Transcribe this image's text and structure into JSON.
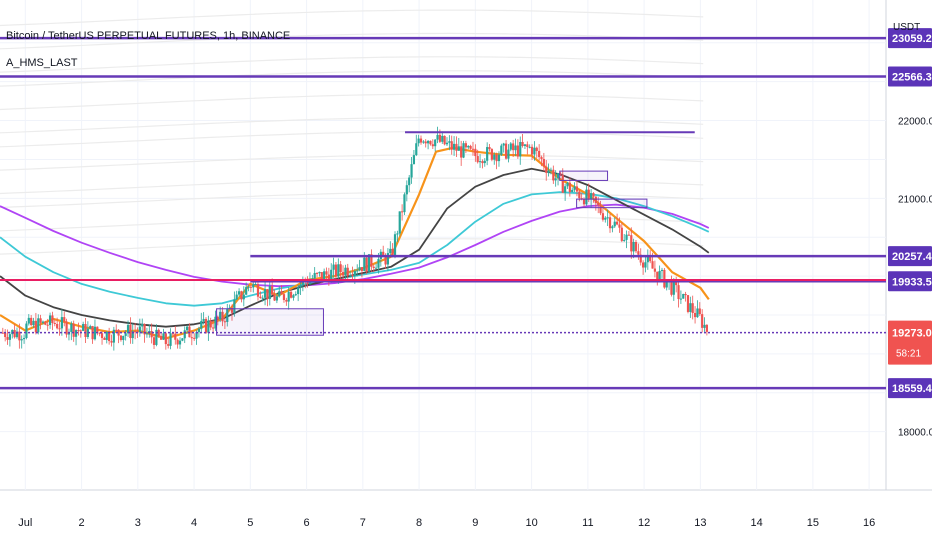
{
  "header": {
    "title": "Bitcoin / TetherUS PERPETUAL FUTURES, 1h, BINANCE",
    "indicator": "A_HMS_LAST",
    "unit": "USDT"
  },
  "colors": {
    "background": "#ffffff",
    "hline": "#673ab7",
    "pink_line": "#e91e63",
    "candle_up": "#26a69a",
    "candle_down": "#ef5350",
    "ma_orange": "#f7931a",
    "ma_dark": "#444444",
    "ma_cyan": "#3ec9d6",
    "ma_purple": "#b044f5",
    "ma_light": "#e7e7e7",
    "price_badge": "#f05350",
    "level_badge": "#5b34b8"
  },
  "chart_data": {
    "type": "candlestick",
    "title": "Bitcoin / TetherUS PERPETUAL FUTURES, 1h, BINANCE",
    "x_ticks": [
      "Jul",
      "2",
      "3",
      "4",
      "5",
      "6",
      "7",
      "8",
      "9",
      "10",
      "11",
      "12",
      "13",
      "14",
      "15",
      "16"
    ],
    "y_ticks": [
      22000.0,
      21000.0,
      18000.0
    ],
    "y_tick_labels": [
      "22000.0",
      "21000.0",
      "18000.0"
    ],
    "ylim": [
      17250,
      23550
    ],
    "xlim": [
      0.55,
      16.3
    ],
    "grid": true,
    "horizontal_levels": [
      {
        "value": 23059.2,
        "label": "23059.2",
        "full_width": true
      },
      {
        "value": 22566.3,
        "label": "22566.3",
        "full_width": true
      },
      {
        "value": 20257.4,
        "label": "20257.4",
        "start_day": 5.0
      },
      {
        "value": 19933.5,
        "label": "19933.5",
        "start_day": 5.0
      },
      {
        "value": 18559.4,
        "label": "18559.4",
        "full_width": true
      }
    ],
    "pink_level": {
      "value": 19950
    },
    "dotted_level": {
      "value": 19273.0
    },
    "current_price": {
      "value": "19273.0",
      "countdown": "58:21"
    },
    "boxes": [
      {
        "x0": 4.4,
        "x1": 6.3,
        "y0": 19240,
        "y1": 19580
      },
      {
        "x0": 7.75,
        "x1": 12.9,
        "y0": 21850,
        "y1": 21850
      },
      {
        "x0": 10.5,
        "x1": 11.35,
        "y0": 21230,
        "y1": 21350
      },
      {
        "x0": 10.8,
        "x1": 12.05,
        "y0": 20880,
        "y1": 20990
      }
    ],
    "series": [
      {
        "role": "price",
        "type": "candlestick",
        "days": [
          1.0,
          1.5,
          2.0,
          2.5,
          3.0,
          3.5,
          4.0,
          4.5,
          5.0,
          5.5,
          6.0,
          6.5,
          7.0,
          7.5,
          8.0,
          8.3,
          8.6,
          9.0,
          9.5,
          10.0,
          10.5,
          11.0,
          11.5,
          12.0,
          12.5,
          13.0,
          13.15
        ],
        "close": [
          19350,
          19400,
          19300,
          19250,
          19300,
          19150,
          19300,
          19450,
          19900,
          19700,
          19950,
          20050,
          20150,
          20250,
          21800,
          21750,
          21650,
          21550,
          21600,
          21650,
          21200,
          21000,
          20650,
          20200,
          19850,
          19450,
          19273
        ]
      },
      {
        "role": "ma",
        "color": "orange",
        "days": [
          0.55,
          1.0,
          1.5,
          2.0,
          2.5,
          3.0,
          3.5,
          4.0,
          4.5,
          5.0,
          5.5,
          6.0,
          6.5,
          7.0,
          7.5,
          8.0,
          8.3,
          8.6,
          9.0,
          9.5,
          10.0,
          10.5,
          11.0,
          11.5,
          12.0,
          12.5,
          13.0,
          13.15
        ],
        "values": [
          19500,
          19300,
          19450,
          19350,
          19280,
          19300,
          19200,
          19300,
          19450,
          19900,
          19750,
          19950,
          20000,
          20100,
          20250,
          21050,
          21600,
          21650,
          21600,
          21560,
          21550,
          21250,
          21050,
          20750,
          20450,
          20050,
          19850,
          19700
        ]
      },
      {
        "role": "ma",
        "color": "dark",
        "days": [
          0.55,
          1.0,
          1.5,
          2.0,
          2.5,
          3.0,
          3.5,
          4.0,
          4.5,
          5.0,
          5.5,
          6.0,
          6.5,
          7.0,
          7.5,
          8.0,
          8.5,
          9.0,
          9.5,
          10.0,
          10.5,
          11.0,
          11.5,
          12.0,
          12.5,
          13.0,
          13.15
        ],
        "values": [
          20000,
          19750,
          19600,
          19500,
          19430,
          19380,
          19350,
          19380,
          19450,
          19620,
          19780,
          19880,
          19960,
          20040,
          20120,
          20340,
          20870,
          21150,
          21300,
          21380,
          21310,
          21170,
          20980,
          20790,
          20600,
          20380,
          20300
        ]
      },
      {
        "role": "ma",
        "color": "cyan",
        "days": [
          0.55,
          1.0,
          1.5,
          2.0,
          2.5,
          3.0,
          3.5,
          4.0,
          4.5,
          5.0,
          5.5,
          6.0,
          6.5,
          7.0,
          7.5,
          8.0,
          8.5,
          9.0,
          9.5,
          10.0,
          10.5,
          11.0,
          11.5,
          12.0,
          12.5,
          13.0,
          13.15
        ],
        "values": [
          20500,
          20250,
          20050,
          19900,
          19800,
          19720,
          19650,
          19620,
          19650,
          19750,
          19840,
          19900,
          19960,
          20020,
          20080,
          20170,
          20400,
          20700,
          20930,
          21050,
          21080,
          21060,
          21000,
          20900,
          20770,
          20620,
          20570
        ]
      },
      {
        "role": "ma",
        "color": "purple",
        "days": [
          0.55,
          1.0,
          1.5,
          2.0,
          2.5,
          3.0,
          3.5,
          4.0,
          4.5,
          5.0,
          5.5,
          6.0,
          6.5,
          7.0,
          7.5,
          8.0,
          8.5,
          9.0,
          9.5,
          10.0,
          10.5,
          11.0,
          11.5,
          12.0,
          12.5,
          13.0,
          13.15
        ],
        "values": [
          20900,
          20750,
          20580,
          20430,
          20300,
          20180,
          20080,
          19990,
          19930,
          19890,
          19870,
          19880,
          19910,
          19960,
          20030,
          20110,
          20240,
          20400,
          20570,
          20710,
          20830,
          20900,
          20920,
          20880,
          20800,
          20670,
          20620
        ]
      }
    ]
  }
}
